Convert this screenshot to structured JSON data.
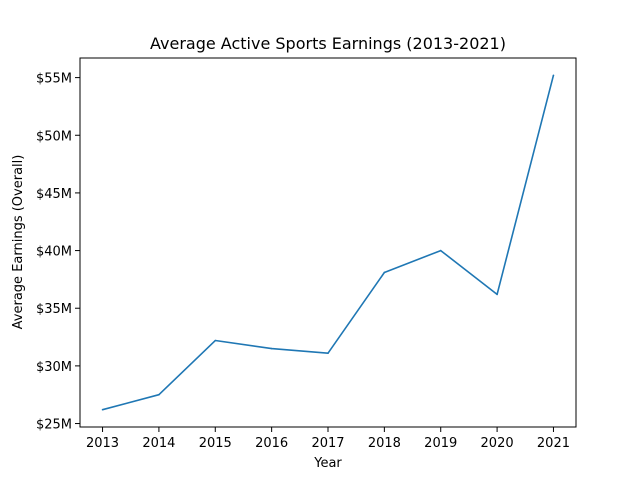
{
  "chart_data": {
    "type": "line",
    "title": "Average Active Sports Earnings (2013-2021)",
    "xlabel": "Year",
    "ylabel": "Average Earnings (Overall)",
    "x": [
      2013,
      2014,
      2015,
      2016,
      2017,
      2018,
      2019,
      2020,
      2021
    ],
    "series": [
      {
        "values": [
          26.2,
          27.5,
          32.2,
          31.5,
          31.1,
          38.1,
          40.0,
          36.2,
          55.2
        ]
      }
    ],
    "x_ticks": [
      "2013",
      "2014",
      "2015",
      "2016",
      "2017",
      "2018",
      "2019",
      "2020",
      "2021"
    ],
    "y_ticks": [
      {
        "value": 25,
        "label": "$25M"
      },
      {
        "value": 30,
        "label": "$30M"
      },
      {
        "value": 35,
        "label": "$35M"
      },
      {
        "value": 40,
        "label": "$40M"
      },
      {
        "value": 45,
        "label": "$45M"
      },
      {
        "value": 50,
        "label": "$50M"
      },
      {
        "value": 55,
        "label": "$55M"
      }
    ],
    "xlim": [
      2012.6,
      2021.4
    ],
    "ylim": [
      24.7,
      56.7
    ],
    "grid": false,
    "legend": false,
    "line_color": "#1f77b4"
  }
}
